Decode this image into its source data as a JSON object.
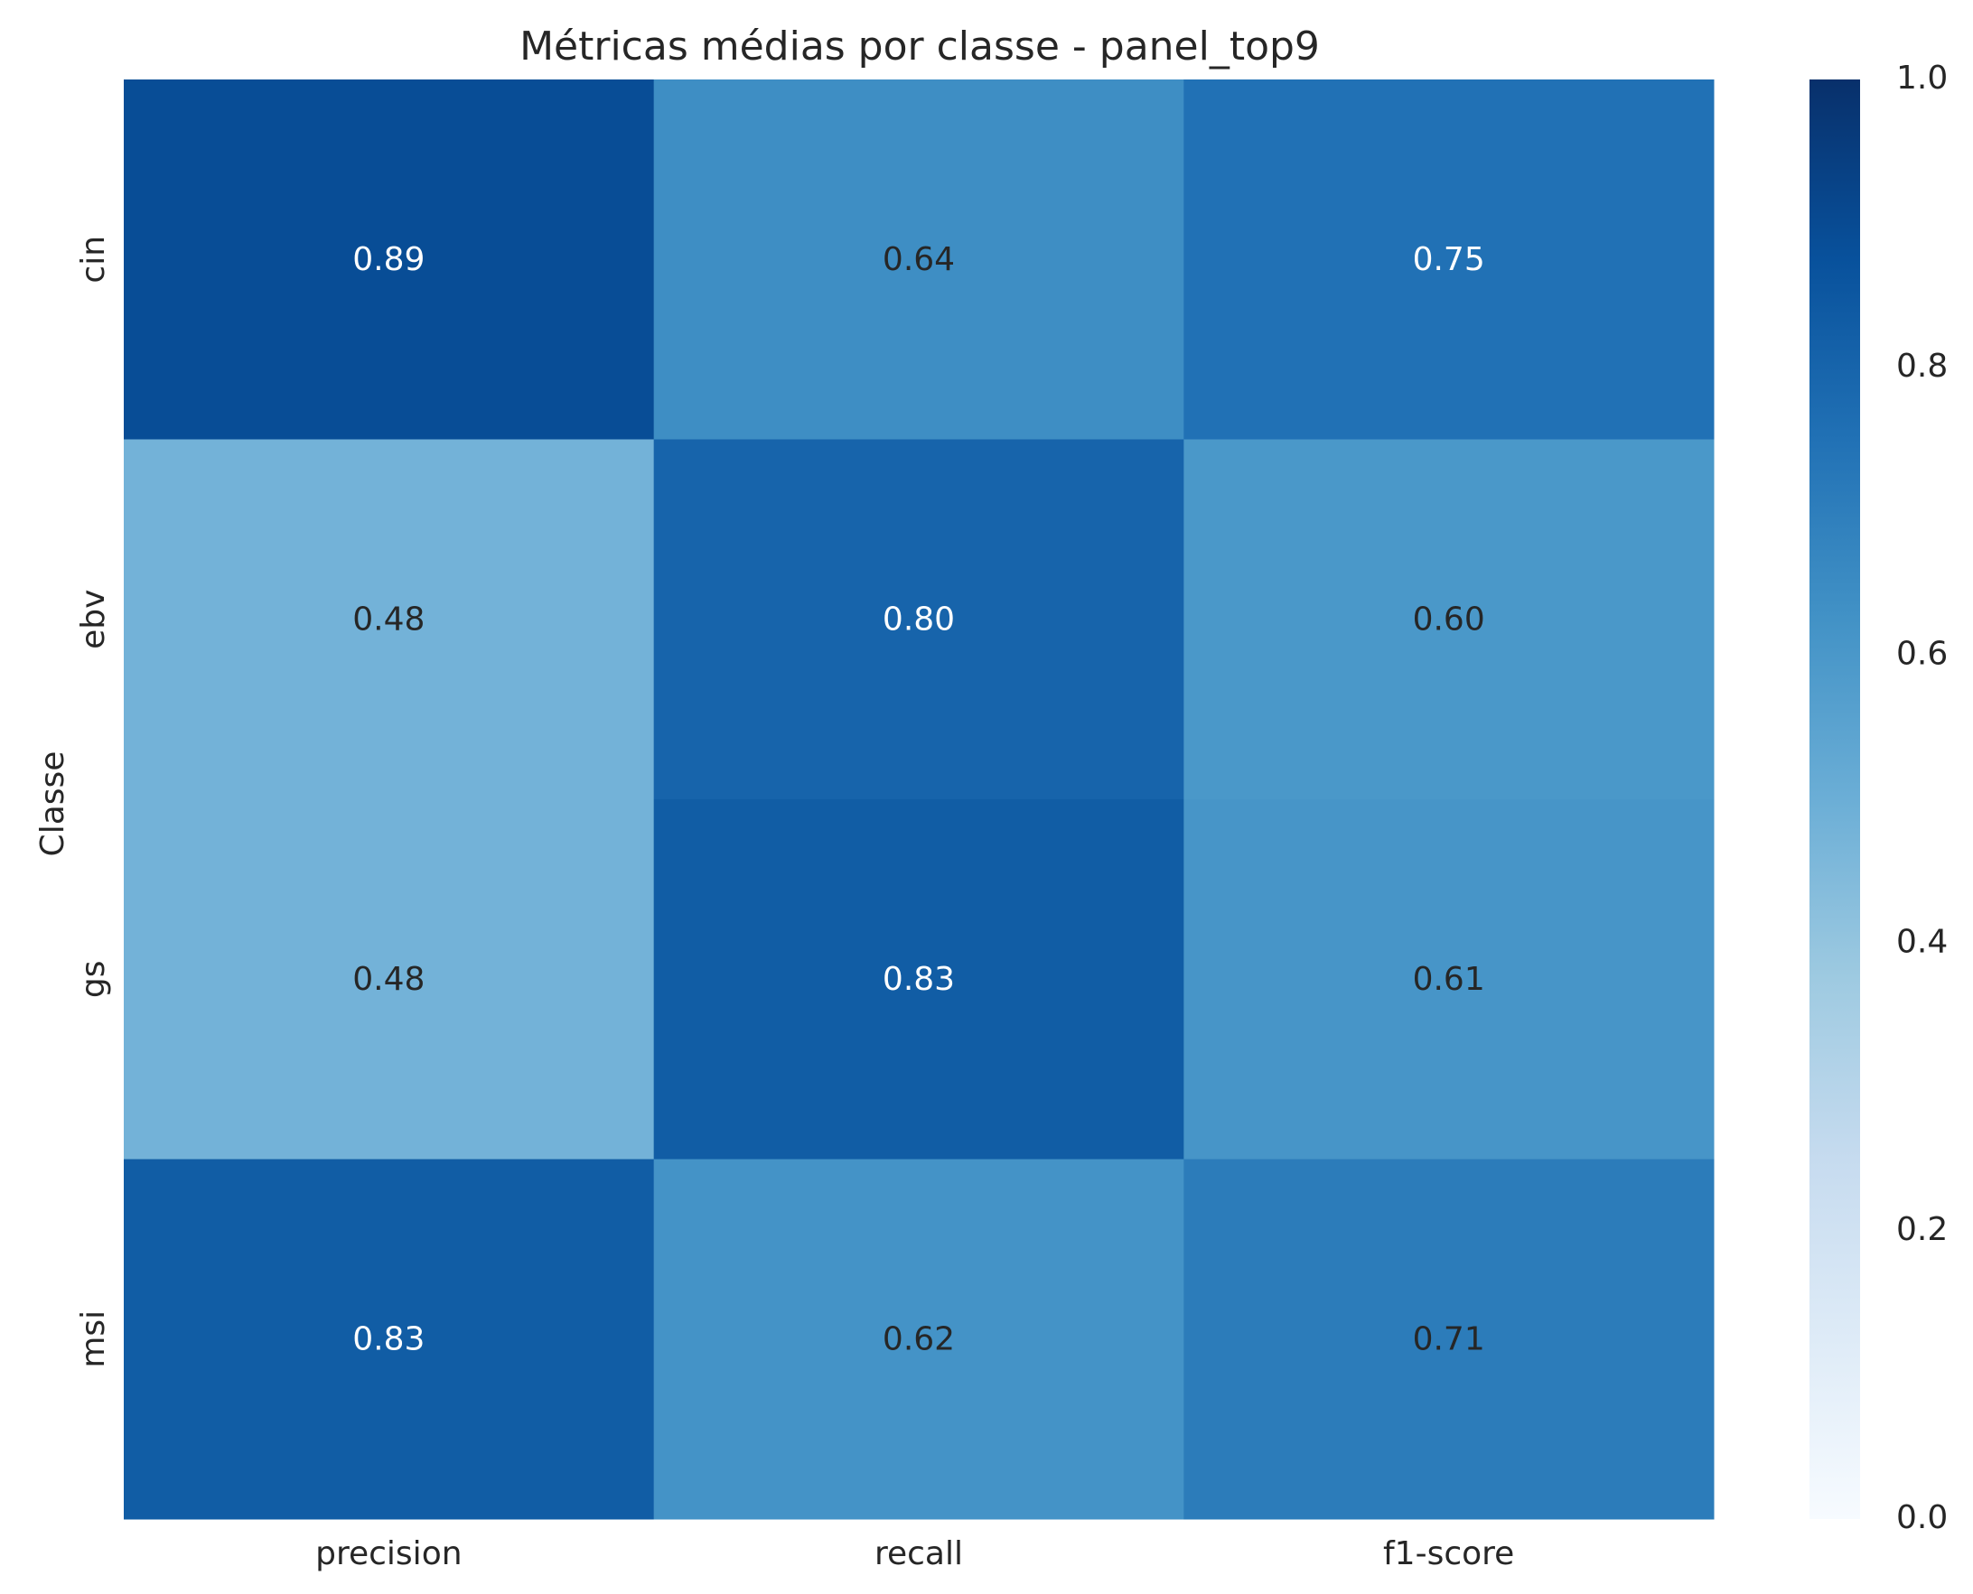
{
  "chart_data": {
    "type": "heatmap",
    "title": "Métricas médias por classe - panel_top9",
    "xlabel": "",
    "ylabel": "Classe",
    "x_categories": [
      "precision",
      "recall",
      "f1-score"
    ],
    "y_categories": [
      "cin",
      "ebv",
      "gs",
      "msi"
    ],
    "values": [
      [
        0.89,
        0.64,
        0.75
      ],
      [
        0.48,
        0.8,
        0.6
      ],
      [
        0.48,
        0.83,
        0.61
      ],
      [
        0.83,
        0.62,
        0.71
      ]
    ],
    "value_labels": [
      [
        "0.89",
        "0.64",
        "0.75"
      ],
      [
        "0.48",
        "0.80",
        "0.60"
      ],
      [
        "0.48",
        "0.83",
        "0.61"
      ],
      [
        "0.83",
        "0.62",
        "0.71"
      ]
    ],
    "colormap": "Blues",
    "vmin": 0.0,
    "vmax": 1.0,
    "colorbar_ticks": [
      "0.0",
      "0.2",
      "0.4",
      "0.6",
      "0.8",
      "1.0"
    ],
    "grid": false
  }
}
